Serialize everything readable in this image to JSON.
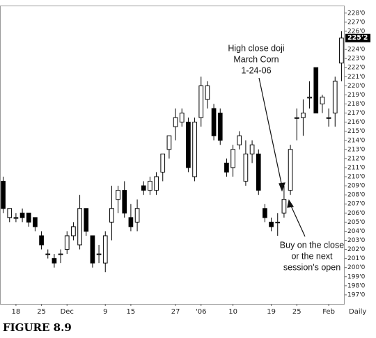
{
  "chart_data": {
    "type": "candlestick",
    "caption": "FIGURE 8.9",
    "period_label": "Daily",
    "last_price": {
      "value": 225.25,
      "label": "225'2"
    },
    "categories": [
      null,
      null,
      "18",
      null,
      null,
      null,
      "25",
      null,
      null,
      null,
      "Dec",
      null,
      null,
      null,
      null,
      null,
      "9",
      null,
      null,
      null,
      "15",
      null,
      null,
      null,
      null,
      null,
      null,
      "27",
      null,
      null,
      null,
      "'06",
      null,
      null,
      null,
      null,
      "10",
      null,
      null,
      null,
      null,
      null,
      "19",
      null,
      null,
      null,
      "25",
      null,
      null,
      null,
      null,
      "Feb",
      null,
      null
    ],
    "open": [
      209.5,
      205.5,
      205.5,
      206,
      206,
      205.5,
      203.5,
      201.5,
      201,
      201.5,
      202,
      203.5,
      202.5,
      206.5,
      203.5,
      201.5,
      200.5,
      205,
      207.5,
      208.5,
      205.5,
      205,
      209,
      208.5,
      208.5,
      210.5,
      213,
      215.5,
      216,
      216,
      210,
      216.5,
      218.5,
      217.5,
      217,
      211.5,
      211,
      213.5,
      209.5,
      212.5,
      212.5,
      206.5,
      205,
      205,
      206,
      208.5,
      216.5,
      216.5,
      218.75,
      222,
      218,
      216.5,
      217,
      222.5
    ],
    "high": [
      210,
      206.5,
      206,
      206.5,
      206,
      205.5,
      204,
      202,
      201.5,
      202,
      204,
      205,
      208,
      206.5,
      203.5,
      202.5,
      204,
      209,
      209,
      209.5,
      207,
      207.5,
      209.5,
      210,
      210.5,
      212.5,
      214.5,
      217.5,
      217.5,
      216.5,
      216.5,
      221,
      220.5,
      218,
      217.5,
      212,
      213.5,
      215,
      214,
      214,
      213,
      207,
      205.5,
      206,
      209,
      213.5,
      217.5,
      218.5,
      220.5,
      222,
      219,
      217.5,
      221,
      226
    ],
    "low": [
      206,
      205,
      205,
      205,
      204.5,
      204,
      202,
      201,
      200,
      200.5,
      201.5,
      203,
      202,
      203.5,
      200,
      200.5,
      199.5,
      203,
      206,
      205.5,
      204,
      204,
      208,
      208,
      208,
      209.5,
      212,
      214,
      215.5,
      210.5,
      209.5,
      215.5,
      217.5,
      214,
      213.5,
      210,
      210,
      213,
      209,
      211.5,
      208,
      205,
      204,
      203.5,
      205.5,
      208,
      214,
      214.5,
      217.5,
      217,
      217,
      215.5,
      215.5,
      220.5
    ],
    "close": [
      206.5,
      206.5,
      205.5,
      205.5,
      205,
      204.5,
      202.5,
      201.5,
      200.5,
      201.5,
      203.5,
      204.5,
      206.5,
      204,
      200.5,
      201.5,
      203.5,
      206.5,
      208.5,
      206,
      204.5,
      206.5,
      208.5,
      209.5,
      210,
      212.5,
      214.5,
      216.5,
      217,
      211,
      216,
      220,
      220,
      214.5,
      214,
      210.5,
      213,
      214.5,
      212.5,
      213.5,
      208.5,
      205.5,
      204.5,
      205,
      207.5,
      213,
      216.5,
      217,
      218.75,
      217,
      218.75,
      216.5,
      220.5,
      225.25
    ],
    "ylim": [
      196,
      228.75
    ],
    "yticks": [
      {
        "value": 197,
        "label": "197'0"
      },
      {
        "value": 198,
        "label": "198'0"
      },
      {
        "value": 199,
        "label": "199'0"
      },
      {
        "value": 200,
        "label": "200'0"
      },
      {
        "value": 201,
        "label": "201'0"
      },
      {
        "value": 202,
        "label": "202'0"
      },
      {
        "value": 203,
        "label": "203'0"
      },
      {
        "value": 204,
        "label": "204'0"
      },
      {
        "value": 205,
        "label": "205'0"
      },
      {
        "value": 206,
        "label": "206'0"
      },
      {
        "value": 207,
        "label": "207'0"
      },
      {
        "value": 208,
        "label": "208'0"
      },
      {
        "value": 209,
        "label": "209'0"
      },
      {
        "value": 210,
        "label": "210'0"
      },
      {
        "value": 211,
        "label": "211'0"
      },
      {
        "value": 212,
        "label": "212'0"
      },
      {
        "value": 213,
        "label": "213'0"
      },
      {
        "value": 214,
        "label": "214'0"
      },
      {
        "value": 215,
        "label": "215'0"
      },
      {
        "value": 216,
        "label": "216'0"
      },
      {
        "value": 217,
        "label": "217'0"
      },
      {
        "value": 218,
        "label": "218'0"
      },
      {
        "value": 219,
        "label": "219'0"
      },
      {
        "value": 220,
        "label": "220'0"
      },
      {
        "value": 221,
        "label": "221'0"
      },
      {
        "value": 222,
        "label": "222'0"
      },
      {
        "value": 223,
        "label": "223'0"
      },
      {
        "value": 224,
        "label": "224'0"
      },
      {
        "value": 226,
        "label": "226'0"
      },
      {
        "value": 227,
        "label": "227'0"
      },
      {
        "value": 228,
        "label": "228'0"
      }
    ],
    "annotations": [
      {
        "lines": [
          "High close doji",
          "March Corn",
          "1-24-06"
        ]
      },
      {
        "lines": [
          "Buy on the close",
          "or the next",
          "session's open"
        ]
      }
    ]
  }
}
